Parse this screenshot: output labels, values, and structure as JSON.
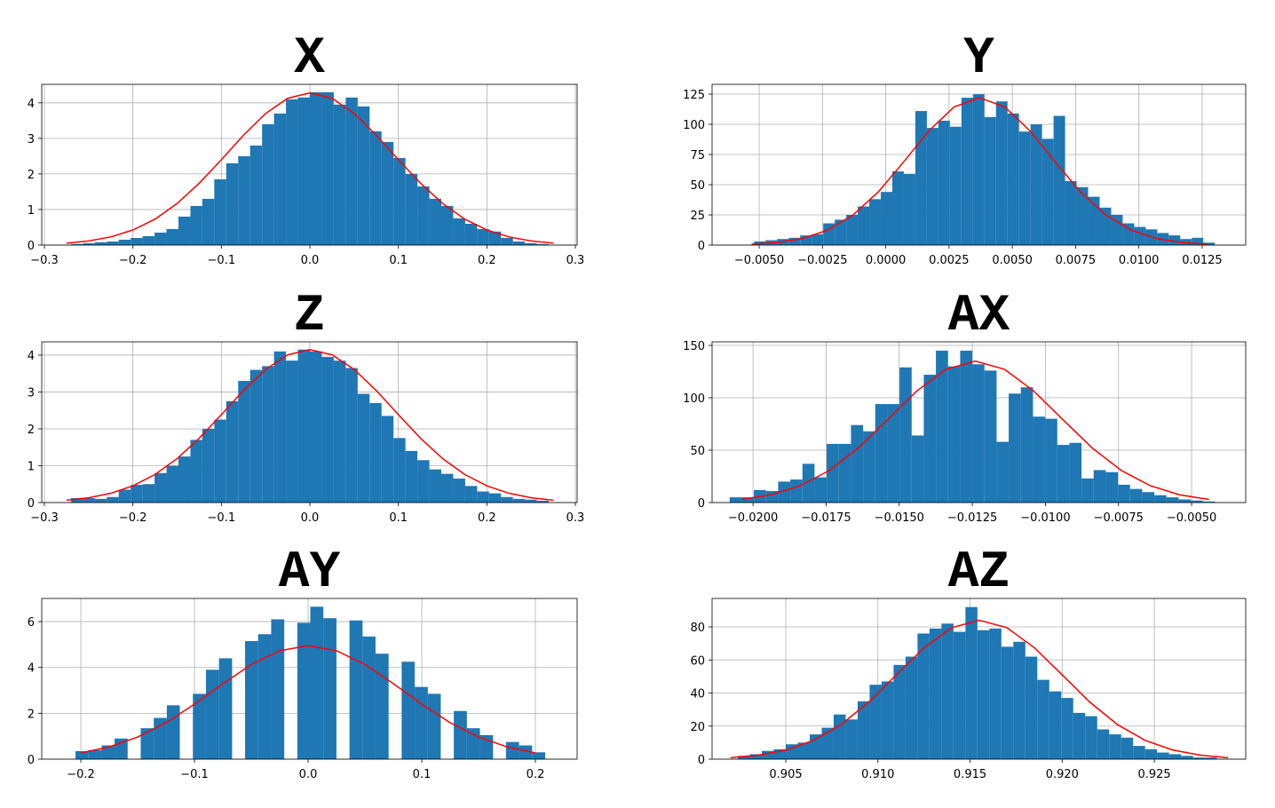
{
  "chart_data": [
    {
      "type": "histogram",
      "title": "X",
      "color": "#1f77b4",
      "grid": true,
      "bins": [
        -0.27,
        -0.2565,
        -0.243,
        -0.2295,
        -0.216,
        -0.2025,
        -0.189,
        -0.1755,
        -0.162,
        -0.1485,
        -0.135,
        -0.1215,
        -0.108,
        -0.0945,
        -0.081,
        -0.0675,
        -0.054,
        -0.0405,
        -0.027,
        -0.0135,
        0,
        0.0135,
        0.027,
        0.0405,
        0.054,
        0.0675,
        0.081,
        0.0945,
        0.108,
        0.1215,
        0.135,
        0.1485,
        0.162,
        0.1755,
        0.189,
        0.2025,
        0.216,
        0.2295,
        0.243,
        0.2565,
        0.27
      ],
      "counts": [
        0.03,
        0.05,
        0.08,
        0.1,
        0.15,
        0.2,
        0.25,
        0.35,
        0.45,
        0.8,
        1.1,
        1.3,
        1.85,
        2.3,
        2.5,
        2.8,
        3.4,
        3.7,
        4.1,
        4.15,
        4.3,
        4.3,
        3.95,
        4.15,
        3.9,
        3.2,
        2.9,
        2.45,
        2.0,
        1.65,
        1.3,
        1.1,
        0.75,
        0.6,
        0.45,
        0.38,
        0.2,
        0.1,
        0.05,
        0.03
      ],
      "curve": {
        "color": "#ff0000",
        "x": [
          -0.275,
          -0.25,
          -0.225,
          -0.2,
          -0.175,
          -0.15,
          -0.125,
          -0.1,
          -0.075,
          -0.05,
          -0.025,
          0,
          0.025,
          0.05,
          0.075,
          0.1,
          0.125,
          0.15,
          0.175,
          0.2,
          0.225,
          0.25,
          0.275
        ],
        "values": [
          0.054,
          0.116,
          0.229,
          0.424,
          0.729,
          1.17,
          1.74,
          2.4,
          3.09,
          3.7,
          4.13,
          4.28,
          4.13,
          3.7,
          3.09,
          2.4,
          1.74,
          1.17,
          0.729,
          0.424,
          0.229,
          0.116,
          0.054
        ]
      },
      "xlim": [
        -0.303,
        0.302
      ],
      "ylim": [
        0,
        4.52
      ],
      "xticks": [
        {
          "value": -0.3,
          "label": "−0.3"
        },
        {
          "value": -0.2,
          "label": "−0.2"
        },
        {
          "value": -0.1,
          "label": "−0.1"
        },
        {
          "value": 0,
          "label": "0.0"
        },
        0.1,
        0.2,
        0.3
      ],
      "yticks": [
        0,
        1,
        2,
        3,
        4
      ]
    },
    {
      "type": "histogram",
      "title": "Y",
      "color": "#1f77b4",
      "grid": true,
      "bins": [
        -0.0052,
        -0.004745,
        -0.00429,
        -0.003835,
        -0.00338,
        -0.002925,
        -0.00247,
        -0.002015,
        -0.00156,
        -0.001105,
        -0.00065,
        -0.000195,
        0.00026,
        0.000715,
        0.00117,
        0.001625,
        0.00208,
        0.002535,
        0.00299,
        0.003445,
        0.0039,
        0.004355,
        0.00481,
        0.005265,
        0.00572,
        0.006175,
        0.00663,
        0.007085,
        0.00754,
        0.007995,
        0.00845,
        0.008905,
        0.00936,
        0.009815,
        0.01027,
        0.010725,
        0.01118,
        0.011635,
        0.01209,
        0.012545,
        0.013
      ],
      "counts": [
        3,
        4,
        5,
        6,
        8,
        9,
        18,
        21,
        25,
        32,
        38,
        44,
        61,
        59,
        111,
        97,
        103,
        98,
        122,
        125,
        106,
        119,
        109,
        94,
        100,
        88,
        107,
        53,
        48,
        40,
        31,
        25,
        18,
        15,
        13,
        10,
        8,
        5,
        6,
        2
      ],
      "curve": {
        "color": "#ff0000",
        "x": [
          -0.0053,
          -0.0043,
          -0.0033,
          -0.0023,
          -0.0013,
          -0.0003,
          0.0007,
          0.0017,
          0.0027,
          0.0037,
          0.0047,
          0.0057,
          0.0067,
          0.0077,
          0.0087,
          0.0097,
          0.0107,
          0.0117,
          0.0127
        ],
        "values": [
          0.7,
          2.1,
          5.4,
          12.3,
          24.8,
          43.9,
          68.7,
          94.5,
          114.4,
          122,
          114.4,
          94.5,
          68.7,
          43.9,
          24.8,
          12.3,
          5.4,
          2.1,
          0.7
        ]
      },
      "xlim": [
        -0.00686,
        0.01422
      ],
      "ylim": [
        0,
        133.1
      ],
      "xticks": [
        {
          "value": -0.005,
          "label": "−0.0050"
        },
        {
          "value": -0.0025,
          "label": "−0.0025"
        },
        {
          "value": 0,
          "label": "0.0000"
        },
        0.0025,
        {
          "value": 0.005,
          "label": "0.0050"
        },
        0.0075,
        {
          "value": 0.01,
          "label": "0.0100"
        },
        0.0125
      ],
      "yticks": [
        0,
        25,
        50,
        75,
        100,
        125
      ]
    },
    {
      "type": "histogram",
      "title": "Z",
      "color": "#1f77b4",
      "grid": true,
      "bins": [
        -0.27,
        -0.2565,
        -0.243,
        -0.2295,
        -0.216,
        -0.2025,
        -0.189,
        -0.1755,
        -0.162,
        -0.1485,
        -0.135,
        -0.1215,
        -0.108,
        -0.0945,
        -0.081,
        -0.0675,
        -0.054,
        -0.0405,
        -0.027,
        -0.0135,
        0,
        0.0135,
        0.027,
        0.0405,
        0.054,
        0.0675,
        0.081,
        0.0945,
        0.108,
        0.1215,
        0.135,
        0.1485,
        0.162,
        0.1755,
        0.189,
        0.2025,
        0.216,
        0.2295,
        0.243,
        0.2565,
        0.27
      ],
      "counts": [
        0.12,
        0.12,
        0.1,
        0.15,
        0.35,
        0.48,
        0.5,
        0.8,
        1.0,
        1.25,
        1.7,
        2.0,
        2.25,
        2.75,
        3.3,
        3.6,
        3.7,
        4.1,
        3.85,
        4.15,
        4.1,
        3.95,
        3.85,
        3.65,
        2.95,
        2.7,
        2.35,
        1.75,
        1.4,
        1.15,
        0.9,
        0.78,
        0.65,
        0.45,
        0.3,
        0.25,
        0.15,
        0.1,
        0.08,
        0.05
      ],
      "curve": {
        "color": "#ff0000",
        "x": [
          -0.275,
          -0.25,
          -0.225,
          -0.2,
          -0.175,
          -0.15,
          -0.125,
          -0.1,
          -0.075,
          -0.05,
          -0.025,
          0,
          0.025,
          0.05,
          0.075,
          0.1,
          0.125,
          0.15,
          0.175,
          0.2,
          0.225,
          0.25,
          0.275
        ],
        "values": [
          0.063,
          0.13,
          0.252,
          0.453,
          0.761,
          1.193,
          1.745,
          2.385,
          3.04,
          3.61,
          4.01,
          4.15,
          4.01,
          3.61,
          3.04,
          2.385,
          1.745,
          1.193,
          0.761,
          0.453,
          0.252,
          0.13,
          0.063
        ]
      },
      "xlim": [
        -0.303,
        0.302
      ],
      "ylim": [
        0,
        4.36
      ],
      "xticks": [
        {
          "value": -0.3,
          "label": "−0.3"
        },
        {
          "value": -0.2,
          "label": "−0.2"
        },
        {
          "value": -0.1,
          "label": "−0.1"
        },
        {
          "value": 0,
          "label": "0.0"
        },
        0.1,
        0.2,
        0.3
      ],
      "yticks": [
        0,
        1,
        2,
        3,
        4
      ]
    },
    {
      "type": "histogram",
      "title": "AX",
      "color": "#1f77b4",
      "grid": true,
      "bins": [
        -0.0208,
        -0.020385,
        -0.01997,
        -0.019555,
        -0.01914,
        -0.018725,
        -0.01831,
        -0.017895,
        -0.01748,
        -0.017065,
        -0.01665,
        -0.016235,
        -0.01582,
        -0.015405,
        -0.01499,
        -0.014575,
        -0.01416,
        -0.013745,
        -0.01333,
        -0.012915,
        -0.0125,
        -0.012085,
        -0.01167,
        -0.011255,
        -0.01084,
        -0.010425,
        -0.01001,
        -0.009595,
        -0.00918,
        -0.008765,
        -0.00835,
        -0.007935,
        -0.00752,
        -0.007105,
        -0.00669,
        -0.006275,
        -0.00586,
        -0.005445,
        -0.00503,
        -0.004615,
        -0.0042
      ],
      "counts": [
        5,
        5,
        12,
        11,
        20,
        22,
        37,
        24,
        56,
        56,
        74,
        68,
        94,
        94,
        129,
        64,
        122,
        145,
        130,
        145,
        132,
        126,
        58,
        104,
        110,
        82,
        80,
        55,
        57,
        23,
        31,
        29,
        17,
        13,
        10,
        7,
        5,
        3,
        2,
        1
      ],
      "curve": {
        "color": "#ff0000",
        "x": [
          -0.0204,
          -0.0194,
          -0.0184,
          -0.0174,
          -0.0164,
          -0.0154,
          -0.0144,
          -0.0134,
          -0.0124,
          -0.0114,
          -0.0104,
          -0.0094,
          -0.0084,
          -0.0074,
          -0.0064,
          -0.0054,
          -0.0044
        ],
        "values": [
          3.0,
          7.3,
          15.9,
          30.5,
          52.1,
          79.1,
          106.4,
          127.2,
          135,
          127.2,
          106.4,
          79.1,
          52.1,
          30.5,
          15.9,
          7.3,
          3.0
        ]
      },
      "xlim": [
        -0.0214,
        -0.00315
      ],
      "ylim": [
        0,
        153.4
      ],
      "xticks": [
        {
          "value": -0.02,
          "label": "−0.0200"
        },
        {
          "value": -0.0175,
          "label": "−0.0175"
        },
        {
          "value": -0.015,
          "label": "−0.0150"
        },
        {
          "value": -0.0125,
          "label": "−0.0125"
        },
        {
          "value": -0.01,
          "label": "−0.0100"
        },
        {
          "value": -0.0075,
          "label": "−0.0075"
        },
        {
          "value": -0.005,
          "label": "−0.0050"
        }
      ],
      "yticks": [
        0,
        50,
        100,
        150
      ]
    },
    {
      "type": "histogram",
      "title": "AY",
      "color": "#1f77b4",
      "grid": true,
      "bins": [
        -0.2047,
        -0.1932,
        -0.1817,
        -0.1703,
        -0.1588,
        -0.1473,
        -0.1358,
        -0.1243,
        -0.1129,
        -0.1014,
        -0.0899,
        -0.0784,
        -0.0669,
        -0.0555,
        -0.044,
        -0.0325,
        -0.021,
        -0.0095,
        0.0019,
        0.0134,
        0.0249,
        0.0364,
        0.0479,
        0.0593,
        0.0708,
        0.0823,
        0.0938,
        0.1053,
        0.1167,
        0.1282,
        0.1397,
        0.1512,
        0.1627,
        0.1741,
        0.1856,
        0.1971,
        0.2086
      ],
      "counts": [
        0.35,
        0.4,
        0.6,
        0.9,
        0,
        1.35,
        1.8,
        2.35,
        0,
        2.85,
        3.9,
        4.4,
        0,
        5.15,
        5.45,
        6.1,
        0,
        5.95,
        6.65,
        6.15,
        0,
        6.05,
        5.35,
        4.6,
        0,
        4.25,
        3.15,
        2.85,
        0,
        2.1,
        1.35,
        1.05,
        0,
        0.75,
        0.6,
        0.3
      ],
      "curve": {
        "color": "#ff0000",
        "x": [
          -0.2,
          -0.175,
          -0.15,
          -0.125,
          -0.1,
          -0.075,
          -0.05,
          -0.025,
          0,
          0.025,
          0.05,
          0.075,
          0.1,
          0.125,
          0.15,
          0.175,
          0.2
        ],
        "values": [
          0.271,
          0.536,
          0.967,
          1.59,
          2.4,
          3.29,
          4.13,
          4.73,
          4.95,
          4.73,
          4.13,
          3.29,
          2.4,
          1.59,
          0.967,
          0.536,
          0.271
        ]
      },
      "xlim": [
        -0.2344,
        0.2367
      ],
      "ylim": [
        0,
        7.01
      ],
      "xticks": [
        {
          "value": -0.2,
          "label": "−0.2"
        },
        {
          "value": -0.1,
          "label": "−0.1"
        },
        {
          "value": 0,
          "label": "0.0"
        },
        0.1,
        0.2
      ],
      "yticks": [
        0,
        2,
        4,
        6
      ]
    },
    {
      "type": "histogram",
      "title": "AZ",
      "color": "#1f77b4",
      "grid": true,
      "bins": [
        0.9024,
        0.90305,
        0.9037,
        0.90435,
        0.905,
        0.90565,
        0.9063,
        0.90695,
        0.9076,
        0.90825,
        0.9089,
        0.90955,
        0.9102,
        0.91085,
        0.9115,
        0.91215,
        0.9128,
        0.91345,
        0.9141,
        0.91475,
        0.9154,
        0.91605,
        0.9167,
        0.91735,
        0.918,
        0.91865,
        0.9193,
        0.91995,
        0.9206,
        0.92125,
        0.9219,
        0.92255,
        0.9232,
        0.92385,
        0.9245,
        0.92515,
        0.9258,
        0.92645,
        0.9271,
        0.92775,
        0.9284
      ],
      "counts": [
        2,
        3,
        5,
        6,
        9,
        10,
        15,
        19,
        27,
        24,
        35,
        45,
        47,
        57,
        62,
        76,
        79,
        82,
        77,
        92,
        78,
        79,
        68,
        71,
        62,
        48,
        41,
        37,
        28,
        26,
        18,
        15,
        13,
        8,
        6,
        4,
        3,
        2,
        1,
        1
      ],
      "curve": {
        "color": "#ff0000",
        "x": [
          0.902,
          0.9035,
          0.905,
          0.9065,
          0.908,
          0.9095,
          0.911,
          0.9125,
          0.914,
          0.9155,
          0.917,
          0.9185,
          0.92,
          0.9215,
          0.923,
          0.9245,
          0.926,
          0.9275,
          0.929
        ],
        "values": [
          0.9,
          2.4,
          5.5,
          11.4,
          20.9,
          34.5,
          51.0,
          67.3,
          79.5,
          84,
          79.5,
          67.3,
          51.0,
          34.5,
          20.9,
          11.4,
          5.5,
          2.4,
          0.9
        ]
      },
      "xlim": [
        0.901,
        0.92996
      ],
      "ylim": [
        0,
        97.2
      ],
      "xticks": [
        0.905,
        {
          "value": 0.91,
          "label": "0.910"
        },
        0.915,
        {
          "value": 0.92,
          "label": "0.920"
        },
        0.925
      ],
      "yticks": [
        0,
        20,
        40,
        60,
        80
      ]
    }
  ]
}
